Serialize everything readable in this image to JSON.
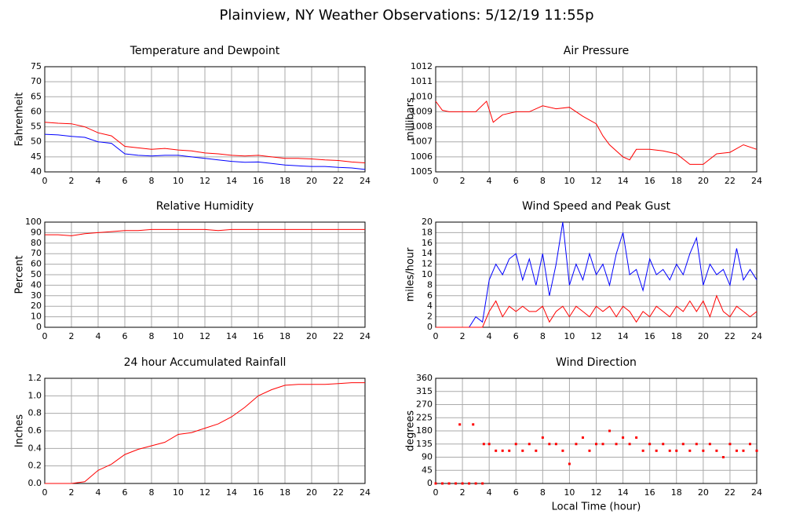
{
  "title": "Plainview, NY Weather Observations: 5/12/19 11:55p",
  "chart_data": [
    {
      "type": "line",
      "title": "Temperature and Dewpoint",
      "ylabel": "Fahrenheit",
      "x": [
        0,
        1,
        2,
        3,
        4,
        5,
        6,
        7,
        8,
        9,
        10,
        11,
        12,
        13,
        14,
        15,
        16,
        17,
        18,
        19,
        20,
        21,
        22,
        23,
        24
      ],
      "series": [
        {
          "color": "#ff0000",
          "values": [
            56.5,
            56.2,
            56,
            55,
            53,
            52,
            48.5,
            48,
            47.5,
            47.8,
            47.3,
            47,
            46.3,
            46,
            45.5,
            45.3,
            45.5,
            45,
            44.5,
            44.5,
            44.3,
            44,
            43.8,
            43.3,
            43
          ]
        },
        {
          "color": "#0000ff",
          "values": [
            52.5,
            52.3,
            51.8,
            51.5,
            50,
            49.5,
            46,
            45.5,
            45.3,
            45.5,
            45.5,
            45,
            44.5,
            44,
            43.5,
            43.2,
            43.3,
            42.8,
            42.3,
            42,
            41.8,
            41.8,
            41.5,
            41.3,
            40.8
          ]
        }
      ],
      "xlim": [
        0,
        24
      ],
      "xticks": [
        0,
        2,
        4,
        6,
        8,
        10,
        12,
        14,
        16,
        18,
        20,
        22,
        24
      ],
      "ylim": [
        40,
        75
      ],
      "yticks": [
        40,
        45,
        50,
        55,
        60,
        65,
        70,
        75
      ],
      "grid": true
    },
    {
      "type": "line",
      "title": "Air Pressure",
      "ylabel": "millibars",
      "x": [
        0,
        0.5,
        1,
        2,
        3,
        3.8,
        4.3,
        5,
        6,
        7,
        8,
        9,
        10,
        11,
        12,
        12.5,
        13,
        14,
        14.5,
        15,
        16,
        17,
        18,
        19,
        20,
        21,
        22,
        23,
        24
      ],
      "series": [
        {
          "color": "#ff0000",
          "values": [
            1009.7,
            1009.1,
            1009,
            1009,
            1009,
            1009.7,
            1008.3,
            1008.8,
            1009,
            1009,
            1009.4,
            1009.2,
            1009.3,
            1008.7,
            1008.2,
            1007.4,
            1006.8,
            1006,
            1005.8,
            1006.5,
            1006.5,
            1006.4,
            1006.2,
            1005.5,
            1005.5,
            1006.2,
            1006.3,
            1006.8,
            1006.5
          ]
        }
      ],
      "xlim": [
        0,
        24
      ],
      "xticks": [
        0,
        2,
        4,
        6,
        8,
        10,
        12,
        14,
        16,
        18,
        20,
        22,
        24
      ],
      "ylim": [
        1005,
        1012
      ],
      "yticks": [
        1005,
        1006,
        1007,
        1008,
        1009,
        1010,
        1011,
        1012
      ],
      "grid": true
    },
    {
      "type": "line",
      "title": "Relative Humidity",
      "ylabel": "Percent",
      "x": [
        0,
        1,
        2,
        3,
        4,
        5,
        6,
        7,
        8,
        9,
        10,
        11,
        12,
        13,
        14,
        15,
        16,
        17,
        18,
        19,
        20,
        21,
        22,
        23,
        24
      ],
      "series": [
        {
          "color": "#ff0000",
          "values": [
            88,
            88,
            87,
            89,
            90,
            91,
            92,
            92,
            93,
            93,
            93,
            93,
            93,
            92,
            93,
            93,
            93,
            93,
            93,
            93,
            93,
            93,
            93,
            93,
            93
          ]
        }
      ],
      "xlim": [
        0,
        24
      ],
      "xticks": [
        0,
        2,
        4,
        6,
        8,
        10,
        12,
        14,
        16,
        18,
        20,
        22,
        24
      ],
      "ylim": [
        0,
        100
      ],
      "yticks": [
        0,
        10,
        20,
        30,
        40,
        50,
        60,
        70,
        80,
        90,
        100
      ],
      "grid": true
    },
    {
      "type": "line",
      "title": "Wind Speed and Peak Gust",
      "ylabel": "miles/hour",
      "x": [
        0,
        0.5,
        1,
        1.5,
        2,
        2.5,
        3,
        3.5,
        4,
        4.5,
        5,
        5.5,
        6,
        6.5,
        7,
        7.5,
        8,
        8.5,
        9,
        9.5,
        10,
        10.5,
        11,
        11.5,
        12,
        12.5,
        13,
        13.5,
        14,
        14.5,
        15,
        15.5,
        16,
        16.5,
        17,
        17.5,
        18,
        18.5,
        19,
        19.5,
        20,
        20.5,
        21,
        21.5,
        22,
        22.5,
        23,
        23.5,
        24
      ],
      "series": [
        {
          "color": "#0000ff",
          "values": [
            0,
            0,
            0,
            0,
            0,
            0,
            2,
            1,
            9,
            12,
            10,
            13,
            14,
            9,
            13,
            8,
            14,
            6,
            12,
            20,
            8,
            12,
            9,
            14,
            10,
            12,
            8,
            14,
            18,
            10,
            11,
            7,
            13,
            10,
            11,
            9,
            12,
            10,
            14,
            17,
            8,
            12,
            10,
            11,
            8,
            15,
            9,
            11,
            9
          ]
        },
        {
          "color": "#ff0000",
          "values": [
            0,
            0,
            0,
            0,
            0,
            0,
            0,
            0,
            3,
            5,
            2,
            4,
            3,
            4,
            3,
            3,
            4,
            1,
            3,
            4,
            2,
            4,
            3,
            2,
            4,
            3,
            4,
            2,
            4,
            3,
            1,
            3,
            2,
            4,
            3,
            2,
            4,
            3,
            5,
            3,
            5,
            2,
            6,
            3,
            2,
            4,
            3,
            2,
            3
          ]
        }
      ],
      "xlim": [
        0,
        24
      ],
      "xticks": [
        0,
        2,
        4,
        6,
        8,
        10,
        12,
        14,
        16,
        18,
        20,
        22,
        24
      ],
      "ylim": [
        0,
        20
      ],
      "yticks": [
        0,
        2,
        4,
        6,
        8,
        10,
        12,
        14,
        16,
        18,
        20
      ],
      "grid": true
    },
    {
      "type": "line",
      "title": "24 hour Accumulated Rainfall",
      "ylabel": "Inches",
      "x": [
        0,
        1,
        2,
        3,
        4,
        5,
        6,
        7,
        8,
        9,
        10,
        11,
        12,
        13,
        14,
        15,
        16,
        17,
        18,
        19,
        20,
        21,
        22,
        23,
        24
      ],
      "series": [
        {
          "color": "#ff0000",
          "values": [
            0,
            0,
            0,
            0.02,
            0.15,
            0.22,
            0.33,
            0.39,
            0.43,
            0.47,
            0.56,
            0.58,
            0.63,
            0.68,
            0.76,
            0.87,
            1.0,
            1.07,
            1.12,
            1.13,
            1.13,
            1.13,
            1.14,
            1.15,
            1.15
          ]
        }
      ],
      "xlim": [
        0,
        24
      ],
      "xticks": [
        0,
        2,
        4,
        6,
        8,
        10,
        12,
        14,
        16,
        18,
        20,
        22,
        24
      ],
      "ylim": [
        0,
        1.2
      ],
      "yticks": [
        {
          "value": 0,
          "label": "0.0"
        },
        0.2,
        0.4,
        0.6,
        0.8,
        {
          "value": 1,
          "label": "1.0"
        },
        1.2
      ],
      "grid": true
    },
    {
      "type": "scatter",
      "title": "Wind Direction",
      "ylabel": "degrees",
      "xlabel": "Local Time (hour)",
      "x": [
        0,
        0.5,
        1,
        1.5,
        1.8,
        2,
        2.5,
        2.8,
        3,
        3.5,
        3.6,
        4,
        4.5,
        5,
        5.5,
        6,
        6.5,
        7,
        7.5,
        8,
        8.5,
        9,
        9.5,
        10,
        10.5,
        11,
        11.5,
        12,
        12.5,
        13,
        13.5,
        14,
        14.5,
        15,
        15.5,
        16,
        16.5,
        17,
        17.5,
        18,
        18.5,
        19,
        19.5,
        20,
        20.5,
        21,
        21.5,
        22,
        22.5,
        23,
        23.5,
        24
      ],
      "values": [
        0,
        0,
        0,
        0,
        202,
        0,
        0,
        202,
        0,
        0,
        135,
        135,
        112,
        112,
        112,
        135,
        112,
        135,
        112,
        157,
        135,
        135,
        112,
        67,
        135,
        157,
        112,
        135,
        135,
        180,
        135,
        157,
        135,
        157,
        112,
        135,
        112,
        135,
        112,
        112,
        135,
        112,
        135,
        112,
        135,
        112,
        90,
        135,
        112,
        112,
        135,
        112
      ],
      "color": "#ff0000",
      "xlim": [
        0,
        24
      ],
      "xticks": [
        0,
        2,
        4,
        6,
        8,
        10,
        12,
        14,
        16,
        18,
        20,
        22,
        24
      ],
      "ylim": [
        0,
        360
      ],
      "yticks": [
        0,
        45,
        90,
        135,
        180,
        225,
        270,
        315,
        360
      ],
      "grid": true
    }
  ]
}
